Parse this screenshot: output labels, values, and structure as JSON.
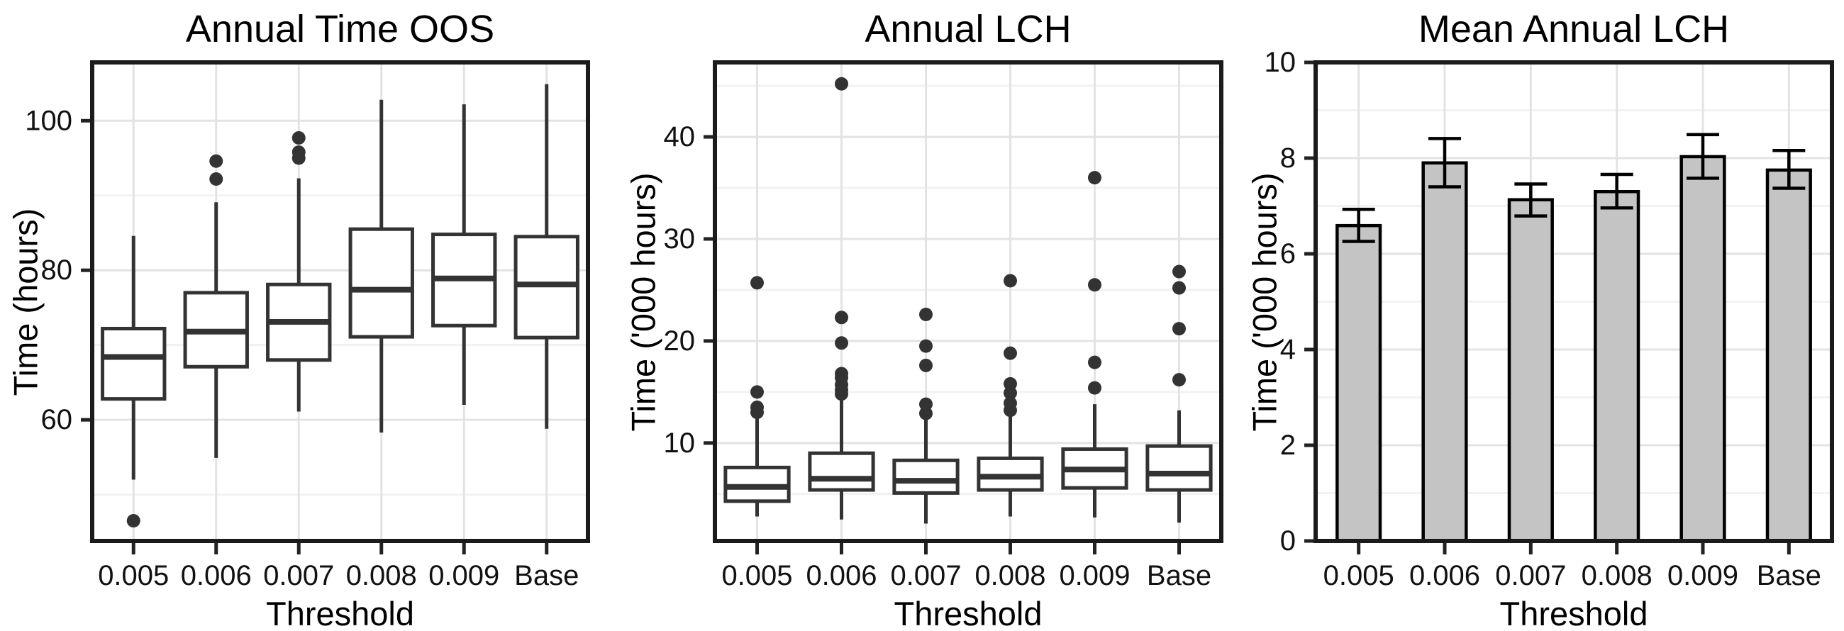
{
  "figure": {
    "background": "#ffffff",
    "line_color": "#333333",
    "border_color": "#1b1b1b",
    "grid_major_color": "#e3e3e3",
    "grid_minor_color": "#f2f2f2",
    "bar_fill": "#c4c4c4",
    "text_color": "#111111"
  },
  "chart_data": [
    {
      "type": "boxplot",
      "title": "Annual Time OOS",
      "xlabel": "Threshold",
      "ylabel": "Time (hours)",
      "categories": [
        "0.005",
        "0.006",
        "0.007",
        "0.008",
        "0.009",
        "Base"
      ],
      "yticks": [
        60,
        80,
        100
      ],
      "yminor": [
        50,
        70,
        90
      ],
      "ylim": [
        43.8,
        107.8
      ],
      "grid": true,
      "legend": "none",
      "boxes": [
        {
          "category": "0.005",
          "whisker_low": 52.0,
          "q1": 62.8,
          "median": 68.4,
          "q3": 72.2,
          "whisker_high": 84.6,
          "outliers": [
            46.5
          ]
        },
        {
          "category": "0.006",
          "whisker_low": 54.9,
          "q1": 67.1,
          "median": 71.8,
          "q3": 77.0,
          "whisker_high": 89.1,
          "outliers": [
            92.2,
            94.6
          ]
        },
        {
          "category": "0.007",
          "whisker_low": 61.1,
          "q1": 68.0,
          "median": 73.1,
          "q3": 78.1,
          "whisker_high": 92.3,
          "outliers": [
            95.0,
            95.8,
            97.7
          ]
        },
        {
          "category": "0.008",
          "whisker_low": 58.3,
          "q1": 71.1,
          "median": 77.4,
          "q3": 85.5,
          "whisker_high": 102.8,
          "outliers": []
        },
        {
          "category": "0.009",
          "whisker_low": 62.0,
          "q1": 72.6,
          "median": 78.9,
          "q3": 84.8,
          "whisker_high": 102.2,
          "outliers": []
        },
        {
          "category": "Base",
          "whisker_low": 58.8,
          "q1": 71.0,
          "median": 78.1,
          "q3": 84.5,
          "whisker_high": 104.9,
          "outliers": []
        }
      ]
    },
    {
      "type": "boxplot",
      "title": "Annual LCH",
      "xlabel": "Threshold",
      "ylabel": "Time ('000 hours)",
      "categories": [
        "0.005",
        "0.006",
        "0.007",
        "0.008",
        "0.009",
        "Base"
      ],
      "yticks": [
        10,
        20,
        30,
        40
      ],
      "yminor": [
        5,
        15,
        25,
        35,
        45
      ],
      "ylim": [
        0.4,
        47.3
      ],
      "grid": true,
      "legend": "none",
      "boxes": [
        {
          "category": "0.005",
          "whisker_low": 2.8,
          "q1": 4.3,
          "median": 5.7,
          "q3": 7.6,
          "whisker_high": 12.6,
          "outliers": [
            13.0,
            13.5,
            15.0,
            25.7
          ]
        },
        {
          "category": "0.006",
          "whisker_low": 2.5,
          "q1": 5.4,
          "median": 6.5,
          "q3": 9.0,
          "whisker_high": 14.4,
          "outliers": [
            14.8,
            15.2,
            15.7,
            16.4,
            16.8,
            19.8,
            22.3,
            45.2
          ]
        },
        {
          "category": "0.007",
          "whisker_low": 2.1,
          "q1": 5.1,
          "median": 6.3,
          "q3": 8.3,
          "whisker_high": 13.0,
          "outliers": [
            12.9,
            13.8,
            17.6,
            19.5,
            22.6
          ]
        },
        {
          "category": "0.008",
          "whisker_low": 2.8,
          "q1": 5.4,
          "median": 6.7,
          "q3": 8.5,
          "whisker_high": 12.6,
          "outliers": [
            13.2,
            13.9,
            14.9,
            15.8,
            18.8,
            25.9
          ]
        },
        {
          "category": "0.009",
          "whisker_low": 2.7,
          "q1": 5.6,
          "median": 7.4,
          "q3": 9.4,
          "whisker_high": 13.8,
          "outliers": [
            15.4,
            17.9,
            25.5,
            36.0
          ]
        },
        {
          "category": "Base",
          "whisker_low": 2.2,
          "q1": 5.4,
          "median": 7.0,
          "q3": 9.7,
          "whisker_high": 13.2,
          "outliers": [
            16.2,
            21.2,
            25.2,
            26.8
          ]
        }
      ]
    },
    {
      "type": "bar",
      "title": "Mean Annual LCH",
      "xlabel": "Threshold",
      "ylabel": "Time ('000 hours)",
      "categories": [
        "0.005",
        "0.006",
        "0.007",
        "0.008",
        "0.009",
        "Base"
      ],
      "yticks": [
        0,
        2,
        4,
        6,
        8,
        10
      ],
      "yminor": [
        1,
        3,
        5,
        7,
        9
      ],
      "ylim": [
        0,
        10
      ],
      "grid": true,
      "legend": "none",
      "values": [
        6.59,
        7.9,
        7.13,
        7.3,
        8.03,
        7.75
      ],
      "error_low": [
        6.26,
        7.4,
        6.79,
        6.96,
        7.58,
        7.37
      ],
      "error_high": [
        6.93,
        8.41,
        7.46,
        7.66,
        8.49,
        8.16
      ]
    }
  ]
}
